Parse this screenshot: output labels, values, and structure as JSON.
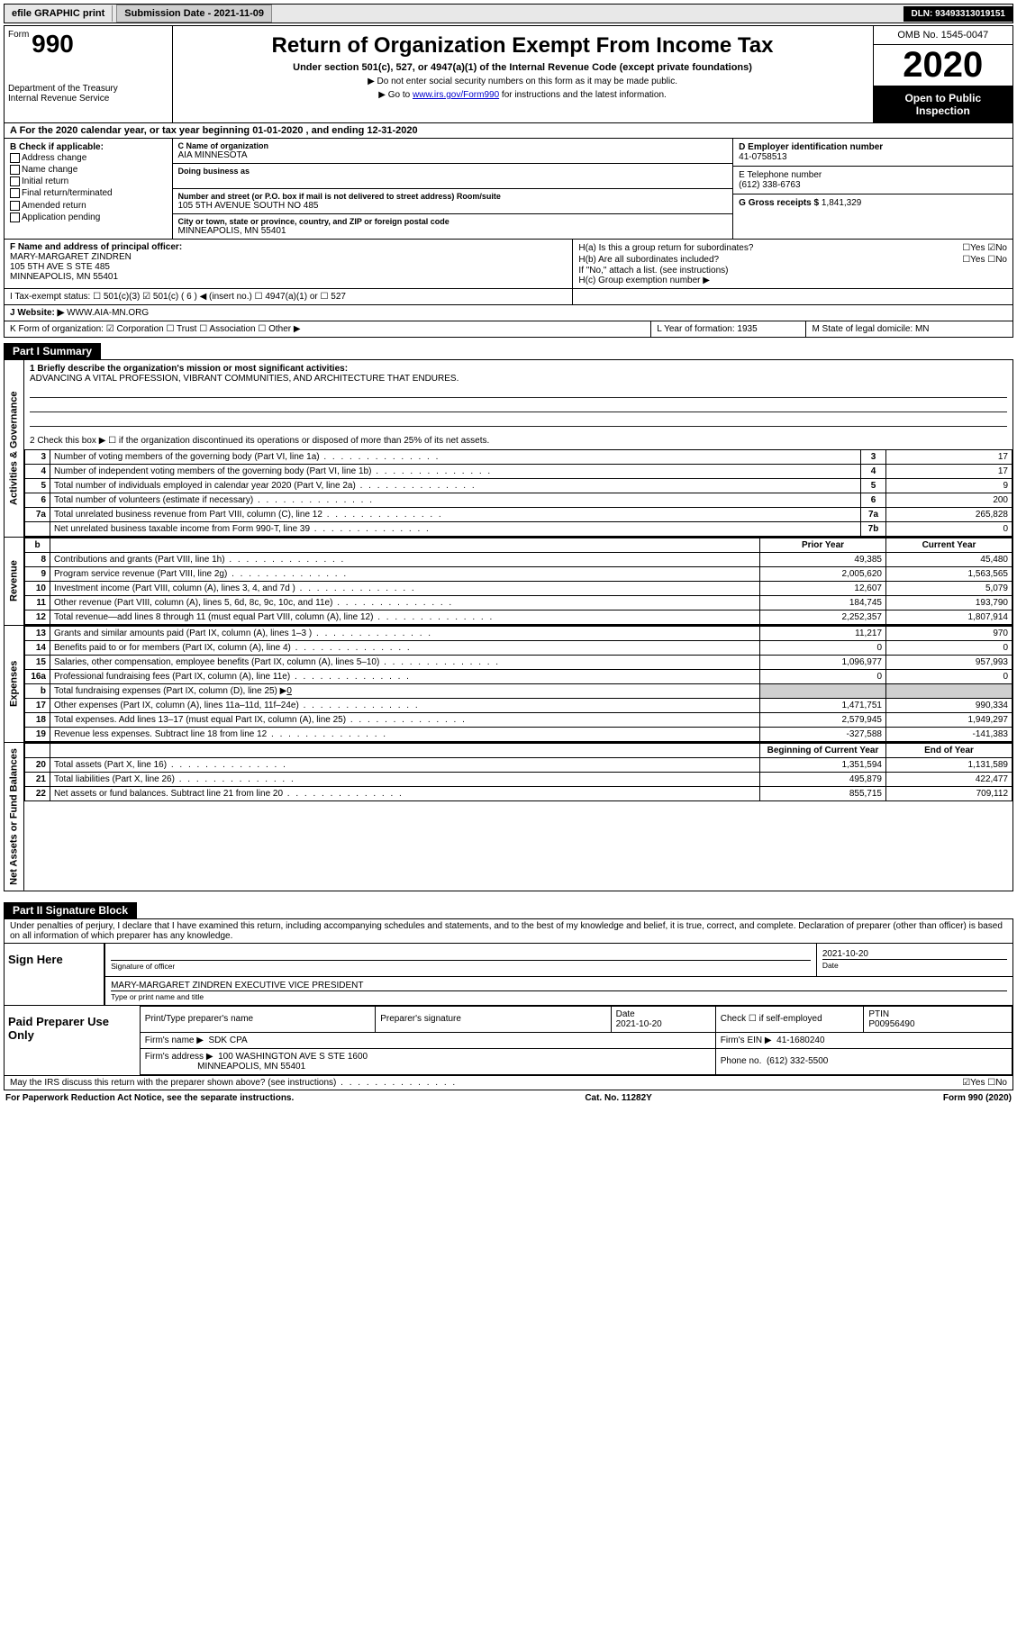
{
  "topbar": {
    "efile": "efile GRAPHIC print",
    "submission": "Submission Date - 2021-11-09",
    "dln": "DLN: 93493313019151"
  },
  "header": {
    "form_word": "Form",
    "form_num": "990",
    "title": "Return of Organization Exempt From Income Tax",
    "sub": "Under section 501(c), 527, or 4947(a)(1) of the Internal Revenue Code (except private foundations)",
    "note1": "▶ Do not enter social security numbers on this form as it may be made public.",
    "note2_pre": "▶ Go to ",
    "note2_link": "www.irs.gov/Form990",
    "note2_post": " for instructions and the latest information.",
    "dept": "Department of the Treasury\nInternal Revenue Service",
    "omb": "OMB No. 1545-0047",
    "year": "2020",
    "open": "Open to Public Inspection"
  },
  "rowA": "A For the 2020 calendar year, or tax year beginning 01-01-2020   , and ending 12-31-2020",
  "colB": {
    "hdr": "B Check if applicable:",
    "items": [
      "Address change",
      "Name change",
      "Initial return",
      "Final return/terminated",
      "Amended return",
      "Application pending"
    ]
  },
  "colC": {
    "name_lab": "C Name of organization",
    "name": "AIA MINNESOTA",
    "dba_lab": "Doing business as",
    "addr_lab": "Number and street (or P.O. box if mail is not delivered to street address)       Room/suite",
    "addr": "105 5TH AVENUE SOUTH NO 485",
    "city_lab": "City or town, state or province, country, and ZIP or foreign postal code",
    "city": "MINNEAPOLIS, MN  55401"
  },
  "colDE": {
    "d_lab": "D Employer identification number",
    "d_val": "41-0758513",
    "e_lab": "E Telephone number",
    "e_val": "(612) 338-6763",
    "g_lab": "G Gross receipts $ ",
    "g_val": "1,841,329"
  },
  "blockF": {
    "lab": "F  Name and address of principal officer:",
    "l1": "MARY-MARGARET ZINDREN",
    "l2": "105 5TH AVE S STE 485",
    "l3": "MINNEAPOLIS, MN  55401"
  },
  "blockH": {
    "ha": "H(a)  Is this a group return for subordinates?",
    "ha_yn": "☐Yes  ☑No",
    "hb": "H(b)  Are all subordinates included?",
    "hb_yn": "☐Yes  ☐No",
    "hb_note": "If \"No,\" attach a list. (see instructions)",
    "hc": "H(c)  Group exemption number ▶"
  },
  "rowI": {
    "left_lab": "I   Tax-exempt status:",
    "opts": "☐ 501(c)(3)   ☑ 501(c) ( 6 ) ◀ (insert no.)   ☐ 4947(a)(1) or   ☐ 527"
  },
  "rowJ": {
    "lab": "J   Website: ▶ ",
    "val": "WWW.AIA-MN.ORG"
  },
  "rowK": {
    "k": "K Form of organization:  ☑ Corporation  ☐ Trust  ☐ Association  ☐ Other ▶",
    "l": "L Year of formation: 1935",
    "m": "M State of legal domicile: MN"
  },
  "part1": {
    "hdr": "Part I     Summary",
    "q1_lab": "1   Briefly describe the organization's mission or most significant activities:",
    "q1_val": "ADVANCING A VITAL PROFESSION, VIBRANT COMMUNITIES, AND ARCHITECTURE THAT ENDURES.",
    "q2": "2    Check this box ▶ ☐  if the organization discontinued its operations or disposed of more than 25% of its net assets.",
    "gov_rows": [
      {
        "n": "3",
        "t": "Number of voting members of the governing body (Part VI, line 1a)",
        "rn": "3",
        "v": "17"
      },
      {
        "n": "4",
        "t": "Number of independent voting members of the governing body (Part VI, line 1b)",
        "rn": "4",
        "v": "17"
      },
      {
        "n": "5",
        "t": "Total number of individuals employed in calendar year 2020 (Part V, line 2a)",
        "rn": "5",
        "v": "9"
      },
      {
        "n": "6",
        "t": "Total number of volunteers (estimate if necessary)",
        "rn": "6",
        "v": "200"
      },
      {
        "n": "7a",
        "t": "Total unrelated business revenue from Part VIII, column (C), line 12",
        "rn": "7a",
        "v": "265,828"
      },
      {
        "n": "",
        "t": "Net unrelated business taxable income from Form 990-T, line 39",
        "rn": "7b",
        "v": "0"
      }
    ],
    "col_hdr_b": "b",
    "col_prior": "Prior Year",
    "col_curr": "Current Year",
    "rev_rows": [
      {
        "n": "8",
        "t": "Contributions and grants (Part VIII, line 1h)",
        "p": "49,385",
        "c": "45,480"
      },
      {
        "n": "9",
        "t": "Program service revenue (Part VIII, line 2g)",
        "p": "2,005,620",
        "c": "1,563,565"
      },
      {
        "n": "10",
        "t": "Investment income (Part VIII, column (A), lines 3, 4, and 7d )",
        "p": "12,607",
        "c": "5,079"
      },
      {
        "n": "11",
        "t": "Other revenue (Part VIII, column (A), lines 5, 6d, 8c, 9c, 10c, and 11e)",
        "p": "184,745",
        "c": "193,790"
      },
      {
        "n": "12",
        "t": "Total revenue—add lines 8 through 11 (must equal Part VIII, column (A), line 12)",
        "p": "2,252,357",
        "c": "1,807,914"
      }
    ],
    "exp_rows": [
      {
        "n": "13",
        "t": "Grants and similar amounts paid (Part IX, column (A), lines 1–3 )",
        "p": "11,217",
        "c": "970"
      },
      {
        "n": "14",
        "t": "Benefits paid to or for members (Part IX, column (A), line 4)",
        "p": "0",
        "c": "0"
      },
      {
        "n": "15",
        "t": "Salaries, other compensation, employee benefits (Part IX, column (A), lines 5–10)",
        "p": "1,096,977",
        "c": "957,993"
      },
      {
        "n": "16a",
        "t": "Professional fundraising fees (Part IX, column (A), line 11e)",
        "p": "0",
        "c": "0"
      }
    ],
    "exp_b": {
      "n": "b",
      "t": "Total fundraising expenses (Part IX, column (D), line 25) ▶",
      "v": "0"
    },
    "exp_rows2": [
      {
        "n": "17",
        "t": "Other expenses (Part IX, column (A), lines 11a–11d, 11f–24e)",
        "p": "1,471,751",
        "c": "990,334"
      },
      {
        "n": "18",
        "t": "Total expenses. Add lines 13–17 (must equal Part IX, column (A), line 25)",
        "p": "2,579,945",
        "c": "1,949,297"
      },
      {
        "n": "19",
        "t": "Revenue less expenses. Subtract line 18 from line 12",
        "p": "-327,588",
        "c": "-141,383"
      }
    ],
    "na_hdr_beg": "Beginning of Current Year",
    "na_hdr_end": "End of Year",
    "na_rows": [
      {
        "n": "20",
        "t": "Total assets (Part X, line 16)",
        "p": "1,351,594",
        "c": "1,131,589"
      },
      {
        "n": "21",
        "t": "Total liabilities (Part X, line 26)",
        "p": "495,879",
        "c": "422,477"
      },
      {
        "n": "22",
        "t": "Net assets or fund balances. Subtract line 21 from line 20",
        "p": "855,715",
        "c": "709,112"
      }
    ],
    "side_gov": "Activities & Governance",
    "side_rev": "Revenue",
    "side_exp": "Expenses",
    "side_na": "Net Assets or Fund Balances"
  },
  "part2": {
    "hdr": "Part II    Signature Block",
    "decl": "Under penalties of perjury, I declare that I have examined this return, including accompanying schedules and statements, and to the best of my knowledge and belief, it is true, correct, and complete. Declaration of preparer (other than officer) is based on all information of which preparer has any knowledge.",
    "sign_here": "Sign Here",
    "sig_of_officer": "Signature of officer",
    "sig_date": "2021-10-20",
    "date_lab": "Date",
    "officer_name": "MARY-MARGARET ZINDREN  EXECUTIVE VICE PRESIDENT",
    "officer_lab": "Type or print name and title",
    "paid": "Paid Preparer Use Only",
    "prep_name_lab": "Print/Type preparer's name",
    "prep_sig_lab": "Preparer's signature",
    "prep_date": "2021-10-20",
    "prep_check": "Check ☐ if self-employed",
    "ptin_lab": "PTIN",
    "ptin": "P00956490",
    "firm_name_lab": "Firm's name    ▶",
    "firm_name": "SDK CPA",
    "firm_ein_lab": "Firm's EIN ▶",
    "firm_ein": "41-1680240",
    "firm_addr_lab": "Firm's address ▶",
    "firm_addr1": "100 WASHINGTON AVE S STE 1600",
    "firm_addr2": "MINNEAPOLIS, MN  55401",
    "phone_lab": "Phone no.",
    "phone": "(612) 332-5500",
    "discuss": "May the IRS discuss this return with the preparer shown above? (see instructions)",
    "discuss_yn": "☑Yes   ☐No"
  },
  "footer": {
    "left": "For Paperwork Reduction Act Notice, see the separate instructions.",
    "mid": "Cat. No. 11282Y",
    "right": "Form 990 (2020)"
  },
  "colors": {
    "bg": "#ffffff",
    "text": "#000000",
    "link": "#0000cc",
    "grey": "#cfcfcf",
    "greylight": "#e8e8e8",
    "black": "#000000"
  }
}
